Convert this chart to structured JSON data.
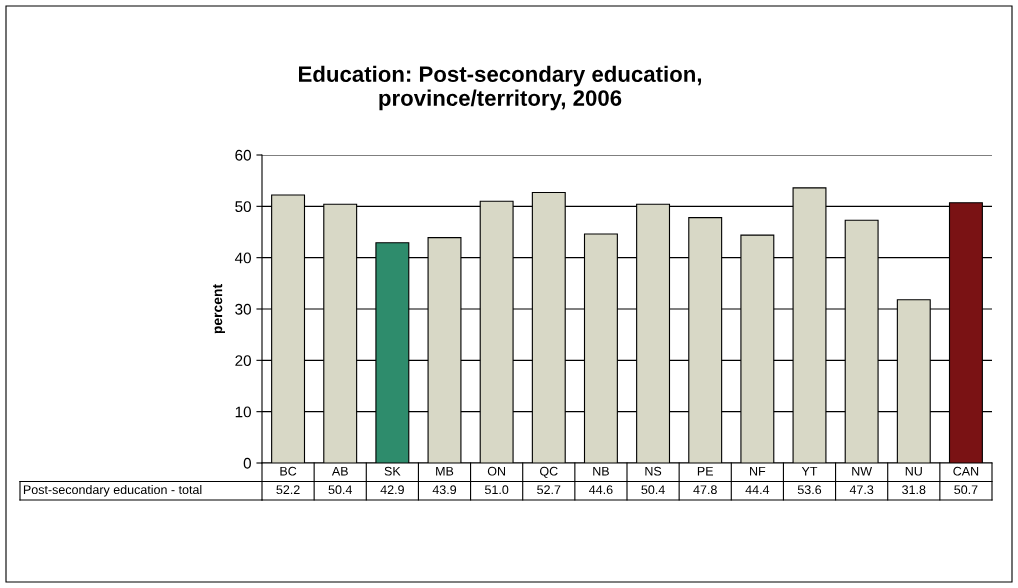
{
  "chart_data": {
    "type": "bar",
    "title": "Education: Post-secondary education,\nprovince/territory, 2006",
    "ylabel": "percent",
    "categories": [
      "BC",
      "AB",
      "SK",
      "MB",
      "ON",
      "QC",
      "NB",
      "NS",
      "PE",
      "NF",
      "YT",
      "NW",
      "NU",
      "CAN"
    ],
    "series": [
      {
        "name": "Post-secondary education - total",
        "values": [
          52.2,
          50.4,
          42.9,
          43.9,
          51.0,
          52.7,
          44.6,
          50.4,
          47.8,
          44.4,
          53.6,
          47.3,
          31.8,
          50.7
        ],
        "colors": [
          "#d8d8c6",
          "#d8d8c6",
          "#2e8c6c",
          "#d8d8c6",
          "#d8d8c6",
          "#d8d8c6",
          "#d8d8c6",
          "#d8d8c6",
          "#d8d8c6",
          "#d8d8c6",
          "#d8d8c6",
          "#d8d8c6",
          "#d8d8c6",
          "#7a1214"
        ],
        "value_labels": [
          "52.2",
          "50.4",
          "42.9",
          "43.9",
          "51.0",
          "52.7",
          "44.6",
          "50.4",
          "47.8",
          "44.4",
          "53.6",
          "47.3",
          "31.8",
          "50.7"
        ]
      }
    ],
    "ylim": [
      0,
      60
    ],
    "yticks": [
      0,
      10,
      20,
      30,
      40,
      50,
      60
    ],
    "grid": "y",
    "legend": "bottom left"
  }
}
